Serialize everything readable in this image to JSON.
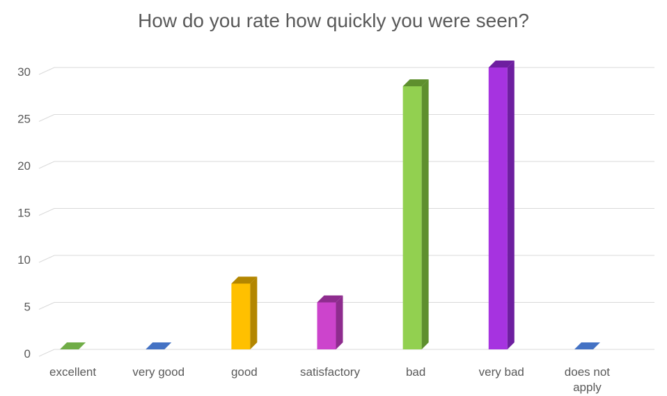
{
  "chart_data": {
    "type": "bar",
    "title": "How do you rate how quickly you were seen?",
    "xlabel": "",
    "ylabel": "",
    "categories": [
      "excellent",
      "very good",
      "good",
      "satisfactory",
      "bad",
      "very bad",
      "does not apply"
    ],
    "values": [
      0,
      0,
      7,
      5,
      28,
      30,
      0
    ],
    "ylim": [
      0,
      30
    ],
    "yticks": [
      "0",
      "5",
      "10",
      "15",
      "20",
      "25",
      "30"
    ],
    "grid": true,
    "legend": "none",
    "colors": [
      "#70AD47",
      "#4472C4",
      "#FFC000",
      "#CC44CC",
      "#92D050",
      "#A633E0",
      "#4472C4"
    ],
    "side_colors": [
      "#507E32",
      "#2F5597",
      "#B38600",
      "#8E2C8E",
      "#5E8F2E",
      "#6E1FA0",
      "#2F5597"
    ]
  }
}
